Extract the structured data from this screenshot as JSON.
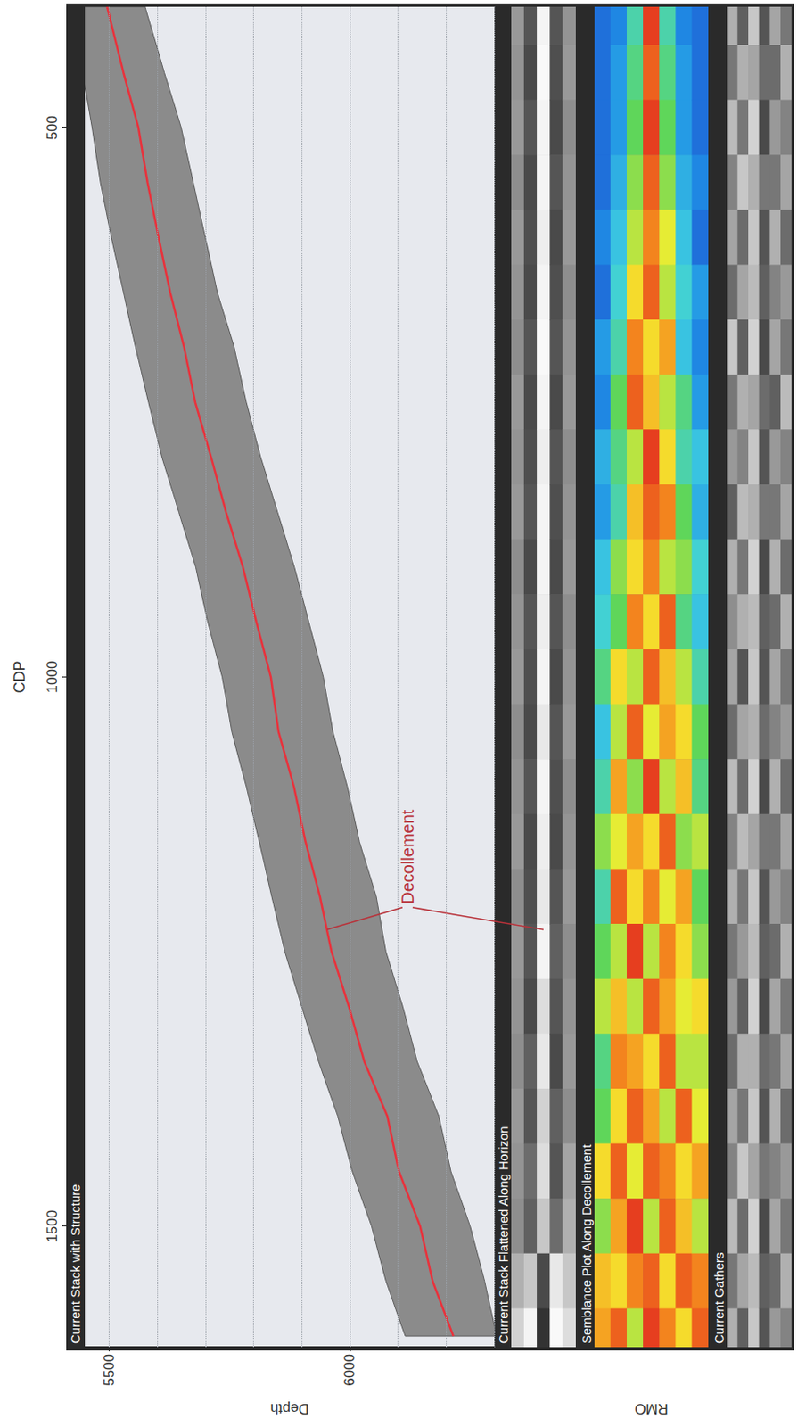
{
  "chart_data": [
    {
      "type": "line",
      "title": "Current Stack with Structure",
      "x_label": "CDP",
      "y_label": "Depth",
      "xlim": [
        1610,
        390
      ],
      "xticks": [
        500,
        1000,
        1500
      ],
      "ylim": [
        6300,
        5450
      ],
      "yticks": [
        5500,
        6000
      ],
      "grid": true,
      "color": "#e8323c",
      "x": [
        390,
        450,
        500,
        550,
        600,
        650,
        700,
        750,
        800,
        850,
        900,
        950,
        1000,
        1050,
        1100,
        1150,
        1200,
        1250,
        1300,
        1350,
        1400,
        1450,
        1500,
        1550,
        1600
      ],
      "values": [
        5496,
        5530,
        5561,
        5580,
        5603,
        5627,
        5656,
        5679,
        5712,
        5743,
        5778,
        5806,
        5836,
        5852,
        5884,
        5908,
        5938,
        5962,
        5998,
        6030,
        6078,
        6102,
        6146,
        6172,
        6215
      ],
      "band_top": [
        5440,
        5445,
        5465,
        5482,
        5505,
        5530,
        5555,
        5582,
        5610,
        5645,
        5680,
        5705,
        5735,
        5755,
        5785,
        5812,
        5838,
        5865,
        5900,
        5935,
        5975,
        6005,
        6045,
        6075,
        6115
      ],
      "band_bottom": [
        5575,
        5615,
        5650,
        5675,
        5700,
        5725,
        5760,
        5785,
        5815,
        5850,
        5885,
        5915,
        5945,
        5965,
        5995,
        6020,
        6055,
        6075,
        6110,
        6140,
        6185,
        6210,
        6250,
        6280,
        6305
      ],
      "annotations": [
        {
          "text": "Decollement",
          "x": 1230
        }
      ]
    },
    {
      "type": "heatmap",
      "title": "Current Stack Flattened Along Horizon",
      "tick_labels": false,
      "xlim": [
        1610,
        390
      ],
      "value_range": [
        -1,
        1
      ],
      "colormap": [
        "#1c1c1c",
        "#8e8e8e",
        "#ffffff"
      ],
      "x": [
        400,
        450,
        500,
        550,
        600,
        650,
        700,
        750,
        800,
        850,
        900,
        950,
        1000,
        1050,
        1100,
        1150,
        1200,
        1250,
        1300,
        1350,
        1400,
        1450,
        1500,
        1550,
        1600
      ],
      "values": [
        [
          0.1,
          0.05,
          0.1,
          0,
          0.1,
          0.05,
          0,
          0.1,
          0.05,
          0.1,
          0,
          0.05,
          0.1,
          0,
          0.05,
          0.1,
          0,
          0.1,
          0.05,
          0,
          0.1,
          0.05,
          0,
          0.3,
          0.6
        ],
        [
          -0.5,
          -0.6,
          -0.5,
          -0.6,
          -0.55,
          -0.6,
          -0.5,
          -0.6,
          -0.55,
          -0.5,
          -0.6,
          -0.5,
          -0.55,
          -0.6,
          -0.5,
          -0.6,
          -0.55,
          -0.5,
          -0.6,
          -0.4,
          -0.5,
          -0.3,
          -0.4,
          0.5,
          0.9
        ],
        [
          0.9,
          0.95,
          0.9,
          0.9,
          0.85,
          0.9,
          0.95,
          0.9,
          0.85,
          0.9,
          0.9,
          0.85,
          0.9,
          0.8,
          0.9,
          0.85,
          0.8,
          0.9,
          0.7,
          0.8,
          0.6,
          0.7,
          0.5,
          -0.6,
          -0.8
        ],
        [
          -0.5,
          -0.55,
          -0.6,
          -0.5,
          -0.6,
          -0.55,
          -0.5,
          -0.6,
          -0.5,
          -0.55,
          -0.6,
          -0.5,
          -0.6,
          -0.5,
          -0.55,
          -0.6,
          -0.5,
          -0.4,
          -0.5,
          -0.6,
          -0.4,
          -0.5,
          -0.3,
          0.8,
          0.95
        ],
        [
          0.05,
          0.1,
          0,
          0.05,
          0.1,
          0,
          0.05,
          0.1,
          0,
          0.05,
          0.1,
          0,
          0.05,
          0.1,
          0,
          0.05,
          0.1,
          0,
          0.05,
          0.1,
          0,
          0.2,
          0.3,
          0.5,
          0.7
        ]
      ]
    },
    {
      "type": "heatmap",
      "title": "Semblance Plot Along Decollement",
      "y_label": "RMO",
      "tick_labels": false,
      "xlim": [
        1610,
        390
      ],
      "value_range": [
        0,
        1
      ],
      "colormap": [
        "#1f43c8",
        "#1f8ee6",
        "#3fd0e0",
        "#5fd65a",
        "#f5ee30",
        "#f5901e",
        "#e01b1f"
      ],
      "x": [
        400,
        450,
        500,
        550,
        600,
        650,
        700,
        750,
        800,
        850,
        900,
        950,
        1000,
        1050,
        1100,
        1150,
        1200,
        1250,
        1300,
        1350,
        1400,
        1450,
        1500,
        1550,
        1600
      ],
      "values": [
        [
          0.1,
          0.1,
          0.1,
          0.1,
          0.15,
          0.1,
          0.2,
          0.15,
          0.25,
          0.2,
          0.3,
          0.35,
          0.45,
          0.3,
          0.4,
          0.55,
          0.4,
          0.5,
          0.6,
          0.45,
          0.5,
          0.7,
          0.55,
          0.75,
          0.8
        ],
        [
          0.15,
          0.2,
          0.2,
          0.25,
          0.3,
          0.35,
          0.4,
          0.5,
          0.45,
          0.4,
          0.55,
          0.5,
          0.7,
          0.6,
          0.8,
          0.65,
          0.9,
          0.6,
          0.75,
          0.85,
          0.7,
          0.9,
          0.8,
          0.7,
          0.9
        ],
        [
          0.4,
          0.45,
          0.5,
          0.55,
          0.6,
          0.7,
          0.85,
          0.9,
          0.6,
          0.75,
          0.7,
          0.85,
          0.6,
          0.9,
          0.55,
          0.8,
          0.7,
          0.95,
          0.6,
          0.8,
          0.9,
          0.65,
          0.95,
          0.85,
          0.6
        ],
        [
          0.95,
          0.9,
          0.95,
          0.9,
          0.85,
          0.9,
          0.7,
          0.75,
          0.95,
          0.9,
          0.85,
          0.7,
          0.9,
          0.65,
          0.95,
          0.7,
          0.85,
          0.6,
          0.9,
          0.7,
          0.8,
          0.9,
          0.6,
          0.9,
          0.95
        ],
        [
          0.4,
          0.45,
          0.5,
          0.55,
          0.65,
          0.6,
          0.8,
          0.6,
          0.7,
          0.85,
          0.6,
          0.9,
          0.75,
          0.8,
          0.6,
          0.9,
          0.65,
          0.85,
          0.8,
          0.9,
          0.6,
          0.85,
          0.9,
          0.7,
          0.85
        ],
        [
          0.15,
          0.2,
          0.2,
          0.25,
          0.3,
          0.35,
          0.3,
          0.45,
          0.4,
          0.5,
          0.55,
          0.45,
          0.6,
          0.7,
          0.75,
          0.55,
          0.8,
          0.7,
          0.65,
          0.6,
          0.9,
          0.7,
          0.75,
          0.9,
          0.7
        ],
        [
          0.1,
          0.1,
          0.1,
          0.15,
          0.1,
          0.2,
          0.15,
          0.2,
          0.3,
          0.25,
          0.35,
          0.3,
          0.4,
          0.5,
          0.45,
          0.6,
          0.5,
          0.55,
          0.7,
          0.6,
          0.65,
          0.8,
          0.6,
          0.85,
          0.9
        ]
      ]
    },
    {
      "type": "heatmap",
      "title": "Current Gathers",
      "tick_labels": false,
      "xlim": [
        1610,
        390
      ],
      "value_range": [
        -1,
        1
      ],
      "colormap": [
        "#1c1c1c",
        "#8e8e8e",
        "#ffffff"
      ],
      "x": [
        400,
        450,
        500,
        550,
        600,
        650,
        700,
        750,
        800,
        850,
        900,
        950,
        1000,
        1050,
        1100,
        1150,
        1200,
        1250,
        1300,
        1350,
        1400,
        1450,
        1500,
        1550,
        1600
      ],
      "values": [
        [
          0.3,
          -0.2,
          0.4,
          -0.1,
          0.2,
          -0.3,
          0.5,
          -0.2,
          0.1,
          -0.4,
          0.3,
          0,
          0.2,
          -0.3,
          0.4,
          -0.1,
          0.3,
          -0.2,
          0.1,
          -0.3,
          0.2,
          -0.1,
          0.4,
          -0.2,
          0.3
        ],
        [
          -0.4,
          0.3,
          -0.2,
          0.5,
          -0.3,
          0.2,
          -0.4,
          0.3,
          -0.1,
          0.4,
          -0.2,
          0.3,
          -0.5,
          0.2,
          -0.3,
          0.4,
          -0.2,
          0.1,
          -0.4,
          0.3,
          -0.2,
          0.5,
          -0.3,
          0.2,
          -0.4
        ],
        [
          0.5,
          0.2,
          0.6,
          0.3,
          0.5,
          0.4,
          0.6,
          0.2,
          0.5,
          0.3,
          0.6,
          0.4,
          0.5,
          0.3,
          0.6,
          0.2,
          0.5,
          0.4,
          0.6,
          0.3,
          0.5,
          0.2,
          0.6,
          0.4,
          0.5
        ],
        [
          -0.5,
          -0.3,
          -0.6,
          -0.2,
          -0.5,
          -0.4,
          -0.6,
          -0.3,
          -0.5,
          -0.2,
          -0.6,
          -0.4,
          -0.5,
          -0.3,
          -0.6,
          -0.2,
          -0.5,
          -0.4,
          -0.6,
          -0.3,
          -0.5,
          -0.2,
          -0.6,
          -0.4,
          -0.5
        ],
        [
          0.2,
          -0.3,
          0.1,
          -0.2,
          0.3,
          -0.1,
          0.2,
          -0.4,
          0.1,
          -0.2,
          0.3,
          -0.3,
          0.2,
          -0.1,
          0.3,
          -0.2,
          0.1,
          -0.3,
          0.2,
          -0.2,
          0.3,
          -0.1,
          0.2,
          -0.3,
          0.1
        ],
        [
          -0.2,
          0.3,
          -0.1,
          0.2,
          -0.3,
          0.1,
          -0.2,
          0.4,
          -0.1,
          0.2,
          -0.3,
          0.3,
          -0.2,
          0.1,
          -0.3,
          0.2,
          -0.1,
          0.3,
          -0.2,
          0.2,
          -0.3,
          0.1,
          -0.2,
          0.3,
          -0.1
        ]
      ]
    }
  ]
}
